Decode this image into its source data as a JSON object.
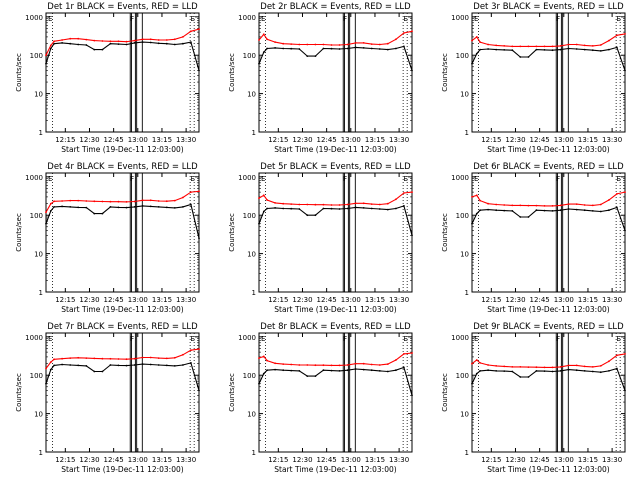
{
  "figure": {
    "ylabel": "Counts/sec",
    "xlabel": "Start Time (19-Dec-11 12:03:00)",
    "xticks": [
      "12:15",
      "12:30",
      "12:45",
      "13:00",
      "13:15",
      "13:30"
    ],
    "yticks": [
      "1",
      "10",
      "100",
      "1000"
    ],
    "markers": {
      "E": "E",
      "F": "F"
    },
    "colors": {
      "events": "#000000",
      "lld": "#ff0000"
    }
  },
  "chart_data": [
    {
      "type": "line",
      "title": "Det 1r BLACK = Events, RED = LLD",
      "xlabel": "Start Time (19-Dec-11 12:03:00)",
      "ylabel": "Counts/sec",
      "yscale": "log",
      "ylim": [
        1,
        1000
      ],
      "x_minutes": [
        0,
        3,
        5,
        10,
        15,
        20,
        25,
        30,
        35,
        40,
        45,
        50,
        55,
        60,
        65,
        70,
        75,
        80,
        85,
        90,
        95
      ],
      "series": [
        {
          "name": "Events",
          "color": "#000000",
          "values": [
            60,
            150,
            200,
            210,
            200,
            190,
            185,
            140,
            140,
            200,
            195,
            190,
            210,
            220,
            215,
            205,
            200,
            190,
            200,
            220,
            40
          ]
        },
        {
          "name": "LLD",
          "color": "#ff0000",
          "values": [
            100,
            180,
            230,
            250,
            270,
            270,
            255,
            240,
            235,
            230,
            230,
            225,
            240,
            260,
            260,
            250,
            250,
            260,
            300,
            420,
            480
          ]
        }
      ]
    },
    {
      "type": "line",
      "title": "Det 2r BLACK = Events, RED = LLD",
      "xlabel": "Start Time (19-Dec-11 12:03:00)",
      "ylabel": "Counts/sec",
      "yscale": "log",
      "ylim": [
        1,
        1000
      ],
      "x_minutes": [
        0,
        3,
        5,
        10,
        15,
        20,
        25,
        30,
        35,
        40,
        45,
        50,
        55,
        60,
        65,
        70,
        75,
        80,
        85,
        90,
        95
      ],
      "series": [
        {
          "name": "Events",
          "color": "#000000",
          "values": [
            60,
            120,
            150,
            155,
            150,
            148,
            145,
            95,
            95,
            150,
            148,
            145,
            150,
            160,
            155,
            150,
            145,
            140,
            150,
            170,
            40
          ]
        },
        {
          "name": "LLD",
          "color": "#ff0000",
          "values": [
            250,
            350,
            260,
            220,
            200,
            195,
            190,
            190,
            190,
            190,
            185,
            185,
            190,
            210,
            210,
            195,
            190,
            200,
            260,
            380,
            420
          ]
        }
      ]
    },
    {
      "type": "line",
      "title": "Det 3r BLACK = Events, RED = LLD",
      "xlabel": "Start Time (19-Dec-11 12:03:00)",
      "ylabel": "Counts/sec",
      "yscale": "log",
      "ylim": [
        1,
        1000
      ],
      "x_minutes": [
        0,
        3,
        5,
        10,
        15,
        20,
        25,
        30,
        35,
        40,
        45,
        50,
        55,
        60,
        65,
        70,
        75,
        80,
        85,
        90,
        95
      ],
      "series": [
        {
          "name": "Events",
          "color": "#000000",
          "values": [
            60,
            110,
            140,
            145,
            140,
            138,
            135,
            90,
            90,
            140,
            138,
            135,
            140,
            150,
            145,
            140,
            135,
            130,
            140,
            160,
            40
          ]
        },
        {
          "name": "LLD",
          "color": "#ff0000",
          "values": [
            240,
            300,
            220,
            190,
            180,
            175,
            170,
            170,
            170,
            170,
            170,
            170,
            175,
            190,
            190,
            180,
            175,
            185,
            240,
            330,
            360
          ]
        }
      ]
    },
    {
      "type": "line",
      "title": "Det 4r BLACK = Events, RED = LLD",
      "xlabel": "Start Time (19-Dec-11 12:03:00)",
      "ylabel": "Counts/sec",
      "yscale": "log",
      "ylim": [
        1,
        1000
      ],
      "x_minutes": [
        0,
        3,
        5,
        10,
        15,
        20,
        25,
        30,
        35,
        40,
        45,
        50,
        55,
        60,
        65,
        70,
        75,
        80,
        85,
        90,
        95
      ],
      "series": [
        {
          "name": "Events",
          "color": "#000000",
          "values": [
            60,
            130,
            165,
            170,
            165,
            160,
            158,
            110,
            110,
            165,
            160,
            158,
            165,
            175,
            170,
            165,
            160,
            155,
            165,
            190,
            25
          ]
        },
        {
          "name": "LLD",
          "color": "#ff0000",
          "values": [
            120,
            200,
            230,
            235,
            240,
            240,
            235,
            230,
            228,
            225,
            225,
            222,
            228,
            245,
            245,
            235,
            232,
            240,
            290,
            400,
            420
          ]
        }
      ]
    },
    {
      "type": "line",
      "title": "Det 5r BLACK = Events, RED = LLD",
      "xlabel": "Start Time (19-Dec-11 12:03:00)",
      "ylabel": "Counts/sec",
      "yscale": "log",
      "ylim": [
        1,
        1000
      ],
      "x_minutes": [
        0,
        3,
        5,
        10,
        15,
        20,
        25,
        30,
        35,
        40,
        45,
        50,
        55,
        60,
        65,
        70,
        75,
        80,
        85,
        90,
        95
      ],
      "series": [
        {
          "name": "Events",
          "color": "#000000",
          "values": [
            60,
            125,
            150,
            155,
            150,
            148,
            145,
            100,
            100,
            150,
            148,
            145,
            150,
            160,
            155,
            150,
            145,
            140,
            150,
            175,
            30
          ]
        },
        {
          "name": "LLD",
          "color": "#ff0000",
          "values": [
            280,
            330,
            250,
            210,
            200,
            195,
            190,
            190,
            188,
            188,
            185,
            185,
            190,
            205,
            205,
            195,
            190,
            200,
            260,
            380,
            400
          ]
        }
      ]
    },
    {
      "type": "line",
      "title": "Det 6r BLACK = Events, RED = LLD",
      "xlabel": "Start Time (19-Dec-11 12:03:00)",
      "ylabel": "Counts/sec",
      "yscale": "log",
      "ylim": [
        1,
        1000
      ],
      "x_minutes": [
        0,
        3,
        5,
        10,
        15,
        20,
        25,
        30,
        35,
        40,
        45,
        50,
        55,
        60,
        65,
        70,
        75,
        80,
        85,
        90,
        95
      ],
      "series": [
        {
          "name": "Events",
          "color": "#000000",
          "values": [
            60,
            110,
            135,
            140,
            135,
            132,
            130,
            90,
            90,
            135,
            132,
            130,
            135,
            145,
            140,
            135,
            130,
            125,
            135,
            160,
            40
          ]
        },
        {
          "name": "LLD",
          "color": "#ff0000",
          "values": [
            300,
            330,
            240,
            200,
            190,
            185,
            180,
            180,
            178,
            178,
            175,
            175,
            180,
            195,
            195,
            185,
            180,
            190,
            250,
            360,
            400
          ]
        }
      ]
    },
    {
      "type": "line",
      "title": "Det 7r BLACK = Events, RED = LLD",
      "xlabel": "Start Time (19-Dec-11 12:03:00)",
      "ylabel": "Counts/sec",
      "yscale": "log",
      "ylim": [
        1,
        1000
      ],
      "x_minutes": [
        0,
        3,
        5,
        10,
        15,
        20,
        25,
        30,
        35,
        40,
        45,
        50,
        55,
        60,
        65,
        70,
        75,
        80,
        85,
        90,
        95
      ],
      "series": [
        {
          "name": "Events",
          "color": "#000000",
          "values": [
            60,
            140,
            180,
            190,
            185,
            180,
            175,
            125,
            125,
            185,
            180,
            178,
            185,
            195,
            190,
            185,
            180,
            175,
            185,
            210,
            40
          ]
        },
        {
          "name": "LLD",
          "color": "#ff0000",
          "values": [
            150,
            220,
            260,
            270,
            280,
            285,
            280,
            275,
            270,
            268,
            265,
            262,
            270,
            290,
            290,
            280,
            275,
            285,
            340,
            450,
            480
          ]
        }
      ]
    },
    {
      "type": "line",
      "title": "Det 8r BLACK = Events, RED = LLD",
      "xlabel": "Start Time (19-Dec-11 12:03:00)",
      "ylabel": "Counts/sec",
      "yscale": "log",
      "ylim": [
        1,
        1000
      ],
      "x_minutes": [
        0,
        3,
        5,
        10,
        15,
        20,
        25,
        30,
        35,
        40,
        45,
        50,
        55,
        60,
        65,
        70,
        75,
        80,
        85,
        90,
        95
      ],
      "series": [
        {
          "name": "Events",
          "color": "#000000",
          "values": [
            60,
            110,
            135,
            140,
            135,
            132,
            130,
            95,
            95,
            135,
            132,
            130,
            135,
            145,
            140,
            135,
            130,
            125,
            135,
            160,
            30
          ]
        },
        {
          "name": "LLD",
          "color": "#ff0000",
          "values": [
            280,
            310,
            240,
            205,
            195,
            190,
            185,
            185,
            183,
            182,
            180,
            180,
            185,
            200,
            200,
            190,
            185,
            195,
            250,
            360,
            380
          ]
        }
      ]
    },
    {
      "type": "line",
      "title": "Det 9r BLACK = Events, RED = LLD",
      "xlabel": "Start Time (19-Dec-11 12:03:00)",
      "ylabel": "Counts/sec",
      "yscale": "log",
      "ylim": [
        1,
        1000
      ],
      "x_minutes": [
        0,
        3,
        5,
        10,
        15,
        20,
        25,
        30,
        35,
        40,
        45,
        50,
        55,
        60,
        65,
        70,
        75,
        80,
        85,
        90,
        95
      ],
      "series": [
        {
          "name": "Events",
          "color": "#000000",
          "values": [
            60,
            110,
            130,
            135,
            130,
            128,
            125,
            90,
            90,
            130,
            128,
            125,
            130,
            140,
            135,
            130,
            125,
            120,
            130,
            150,
            40
          ]
        },
        {
          "name": "LLD",
          "color": "#ff0000",
          "values": [
            200,
            250,
            210,
            185,
            175,
            170,
            165,
            165,
            163,
            162,
            160,
            160,
            165,
            180,
            180,
            170,
            165,
            175,
            230,
            330,
            360
          ]
        }
      ]
    }
  ]
}
